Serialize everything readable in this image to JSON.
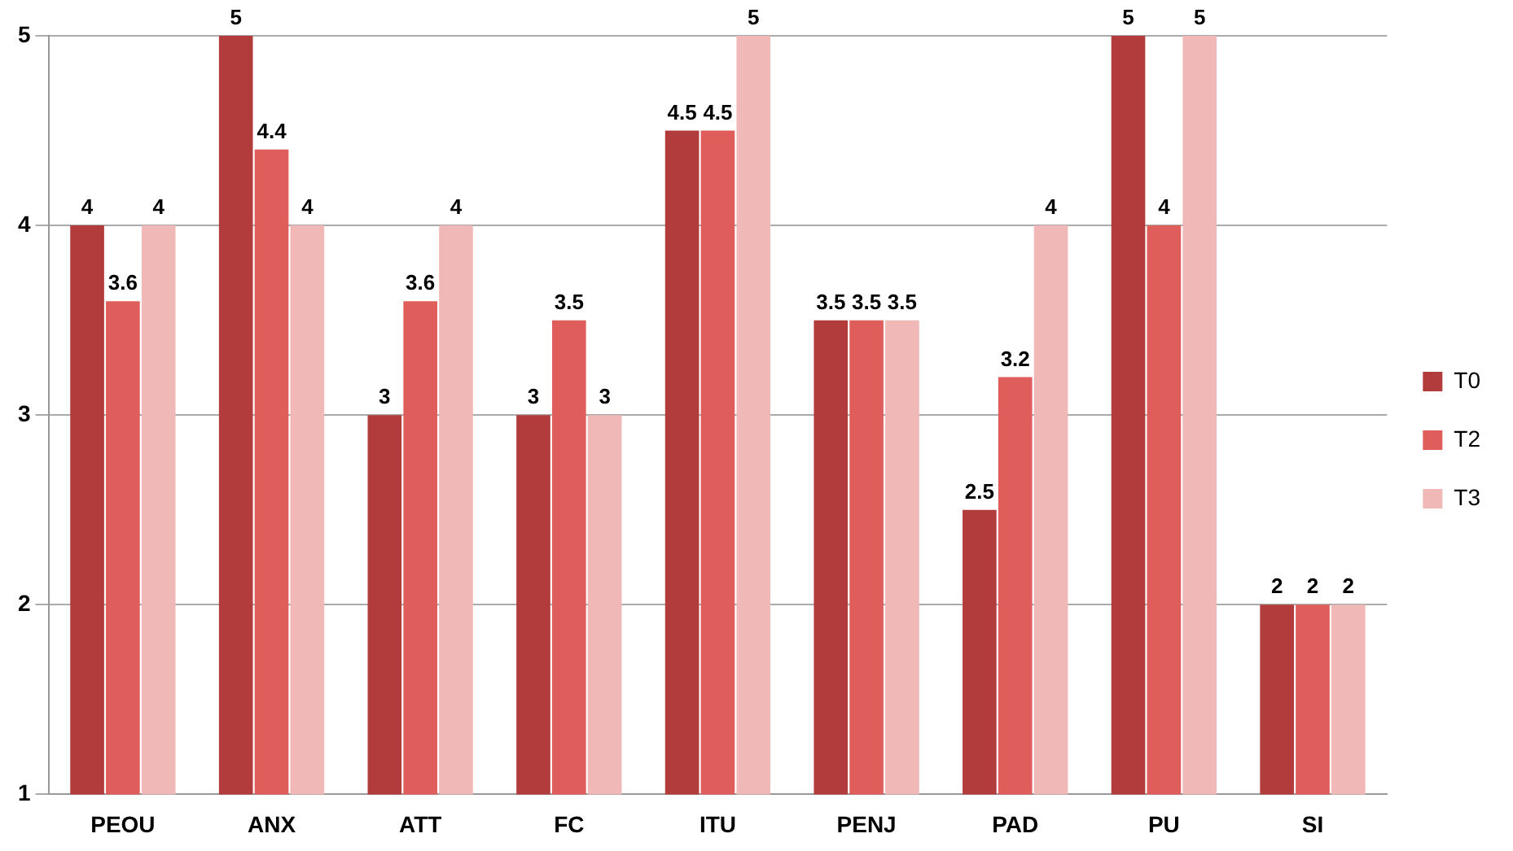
{
  "chart_data": {
    "type": "bar",
    "categories": [
      "PEOU",
      "ANX",
      "ATT",
      "FC",
      "ITU",
      "PENJ",
      "PAD",
      "PU",
      "SI"
    ],
    "series": [
      {
        "name": "T0",
        "color": "#b23b3b",
        "values": [
          4,
          5,
          3,
          3,
          4.5,
          3.5,
          2.5,
          5,
          2
        ]
      },
      {
        "name": "T2",
        "color": "#df5e5b",
        "values": [
          3.6,
          4.4,
          3.6,
          3.5,
          4.5,
          3.5,
          3.2,
          4,
          2
        ]
      },
      {
        "name": "T3",
        "color": "#f0b9b7",
        "values": [
          4,
          4,
          4,
          3,
          5,
          3.5,
          4,
          5,
          2
        ]
      }
    ],
    "ylim": [
      1,
      5
    ],
    "yticks": [
      1,
      2,
      3,
      4,
      5
    ],
    "grid": "y",
    "legend": "right",
    "data_labels": true
  }
}
